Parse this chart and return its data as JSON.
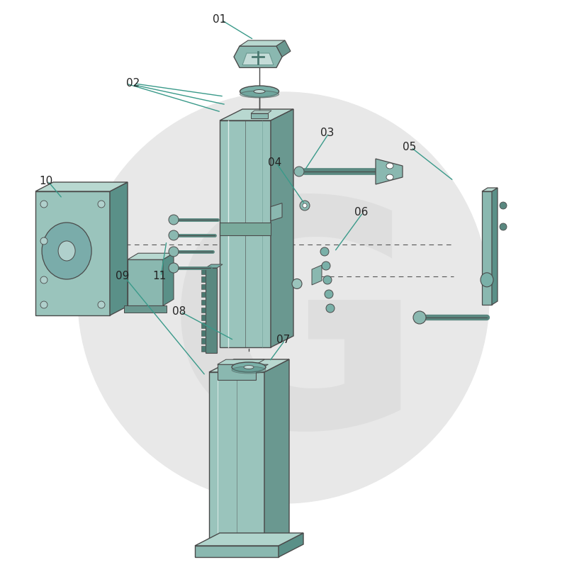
{
  "bg_color": "#ffffff",
  "circle_color": "#e8e8e8",
  "teal_face": "#8fbfb5",
  "teal_right": "#5a9088",
  "teal_top": "#b0d4cc",
  "teal_dark": "#4a8078",
  "teal_med": "#7ab0a8",
  "teal_rack": "#4a7870",
  "border": "#4a4a4a",
  "label_color": "#222222",
  "leader_color": "#3a9a8a",
  "label_fontsize": 11,
  "figsize": [
    8.0,
    8.0
  ],
  "dpi": 100
}
